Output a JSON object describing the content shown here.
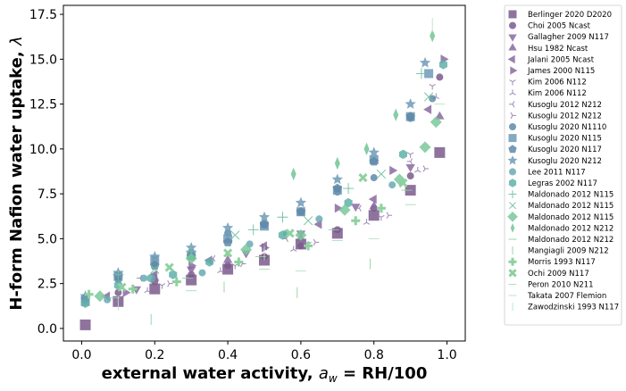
{
  "chart_data": {
    "type": "scatter",
    "title": "",
    "xlabel": "external water activity, a_w = RH/100",
    "xlabel_parts": {
      "main": "external water activity, ",
      "var": "a",
      "sub": "w",
      "rest": " = RH/100"
    },
    "ylabel": "H-form Nafion water uptake, λ",
    "ylabel_parts": {
      "main": "H-form Nafion water uptake, ",
      "var": "λ"
    },
    "xlim": [
      -0.05,
      1.05
    ],
    "ylim": [
      -0.7,
      18.0
    ],
    "xticks": [
      0.0,
      0.2,
      0.4,
      0.6,
      0.8,
      1.0
    ],
    "xtick_labels": [
      "0.0",
      "0.2",
      "0.4",
      "0.6",
      "0.8",
      "1.0"
    ],
    "yticks": [
      0.0,
      2.5,
      5.0,
      7.5,
      10.0,
      12.5,
      15.0,
      17.5
    ],
    "ytick_labels": [
      "0.0",
      "2.5",
      "5.0",
      "7.5",
      "10.0",
      "12.5",
      "15.0",
      "17.5"
    ],
    "grid": false,
    "legend_position": "outside-right",
    "series": [
      {
        "name": "Berlinger 2020 D2020",
        "marker": "square",
        "color": "#7b5a8c",
        "size": 6,
        "x": [
          0.01,
          0.1,
          0.2,
          0.3,
          0.4,
          0.5,
          0.6,
          0.7,
          0.8,
          0.9,
          0.98
        ],
        "y": [
          0.2,
          1.5,
          2.2,
          2.7,
          3.3,
          3.8,
          4.7,
          5.3,
          6.3,
          7.7,
          9.8
        ]
      },
      {
        "name": "Choi 2005 Ncast",
        "marker": "circle",
        "color": "#7b5a8c",
        "size": 4,
        "x": [
          0.1,
          0.2,
          0.3,
          0.4,
          0.5,
          0.6,
          0.7,
          0.8,
          0.9,
          0.98
        ],
        "y": [
          2.0,
          2.6,
          3.0,
          3.5,
          4.0,
          4.6,
          5.5,
          6.7,
          8.5,
          14.0
        ]
      },
      {
        "name": "Gallagher 2009 N117",
        "marker": "triangle-down",
        "color": "#8a6aa0",
        "size": 5,
        "x": [
          0.15,
          0.3,
          0.45,
          0.6,
          0.75,
          0.9
        ],
        "y": [
          2.2,
          3.3,
          4.2,
          5.3,
          6.8,
          9.0
        ]
      },
      {
        "name": "Hsu 1982 Ncast",
        "marker": "triangle-up",
        "color": "#8a6aa0",
        "size": 5,
        "x": [
          0.2,
          0.4,
          0.6,
          0.8,
          0.98
        ],
        "y": [
          2.8,
          3.8,
          5.0,
          6.8,
          11.8
        ]
      },
      {
        "name": "Jalani 2005 Ncast",
        "marker": "triangle-left",
        "color": "#8a6aa0",
        "size": 5,
        "x": [
          0.07,
          0.2,
          0.35,
          0.5,
          0.65,
          0.8,
          0.95
        ],
        "y": [
          1.8,
          3.0,
          3.8,
          4.6,
          5.8,
          7.2,
          12.2
        ]
      },
      {
        "name": "James 2000 N115",
        "marker": "triangle-right",
        "color": "#8a6aa0",
        "size": 5,
        "x": [
          0.12,
          0.3,
          0.5,
          0.7,
          0.85,
          0.99
        ],
        "y": [
          2.0,
          3.5,
          4.5,
          6.7,
          8.8,
          15.0
        ]
      },
      {
        "name": "Kim 2006 N112",
        "marker": "tri-down",
        "color": "#9d88b5",
        "size": 4,
        "x": [
          0.22,
          0.42,
          0.62,
          0.82,
          0.9,
          0.96
        ],
        "y": [
          2.4,
          3.5,
          4.7,
          6.2,
          9.7,
          13.5
        ]
      },
      {
        "name": "Kim 2006 N112",
        "marker": "tri-up",
        "color": "#9d88b5",
        "size": 4,
        "x": [
          0.18,
          0.38,
          0.58,
          0.78,
          0.92,
          0.97
        ],
        "y": [
          2.1,
          3.2,
          4.4,
          5.9,
          8.8,
          12.9
        ]
      },
      {
        "name": "Kusoglu 2012 N212",
        "marker": "tri-left",
        "color": "#9d88b5",
        "size": 4,
        "x": [
          0.16,
          0.36,
          0.56,
          0.76,
          0.9
        ],
        "y": [
          2.8,
          3.9,
          5.0,
          6.7,
          9.3
        ]
      },
      {
        "name": "Kusoglu 2012 N212",
        "marker": "tri-right",
        "color": "#9d88b5",
        "size": 4,
        "x": [
          0.24,
          0.44,
          0.64,
          0.84,
          0.94
        ],
        "y": [
          2.5,
          3.6,
          4.8,
          6.3,
          8.9
        ]
      },
      {
        "name": "Kusoglu 2020 N1110",
        "marker": "circle",
        "color": "#5f8aa8",
        "size": 4,
        "x": [
          0.01,
          0.1,
          0.2,
          0.3,
          0.4,
          0.5,
          0.6,
          0.7,
          0.8,
          0.9,
          0.96
        ],
        "y": [
          1.6,
          2.7,
          3.6,
          4.2,
          5.3,
          5.8,
          6.5,
          7.6,
          8.4,
          11.7,
          12.8
        ]
      },
      {
        "name": "Kusoglu 2020 N115",
        "marker": "square",
        "color": "#6f9ab6",
        "size": 5,
        "x": [
          0.01,
          0.1,
          0.2,
          0.3,
          0.4,
          0.5,
          0.6,
          0.7,
          0.8,
          0.9,
          0.95
        ],
        "y": [
          1.5,
          2.9,
          3.8,
          4.1,
          5.0,
          5.7,
          6.5,
          7.7,
          9.4,
          11.8,
          14.2
        ]
      },
      {
        "name": "Kusoglu 2020 N117",
        "marker": "pentagon",
        "color": "#5f8aa8",
        "size": 5,
        "x": [
          0.01,
          0.1,
          0.2,
          0.3,
          0.4,
          0.5,
          0.6,
          0.7,
          0.8,
          0.9
        ],
        "y": [
          1.7,
          2.9,
          3.5,
          4.0,
          4.8,
          5.8,
          6.5,
          7.8,
          9.3,
          11.8
        ]
      },
      {
        "name": "Kusoglu 2020 N212",
        "marker": "star",
        "color": "#6f9ab6",
        "size": 5,
        "x": [
          0.01,
          0.1,
          0.2,
          0.3,
          0.4,
          0.5,
          0.6,
          0.7,
          0.8,
          0.9,
          0.94
        ],
        "y": [
          1.8,
          3.1,
          4.0,
          4.5,
          5.6,
          6.2,
          7.0,
          8.3,
          9.8,
          12.5,
          14.8
        ]
      },
      {
        "name": "Lee 2011 N117",
        "marker": "circle",
        "color": "#6aaab0",
        "size": 4,
        "x": [
          0.07,
          0.17,
          0.33,
          0.46,
          0.56,
          0.65,
          0.85
        ],
        "y": [
          1.6,
          2.8,
          3.1,
          4.7,
          5.3,
          6.1,
          8.0
        ]
      },
      {
        "name": "Legras 2002 N117",
        "marker": "hexagon",
        "color": "#5fb0a8",
        "size": 5,
        "x": [
          0.01,
          0.1,
          0.19,
          0.25,
          0.35,
          0.55,
          0.73,
          0.88,
          0.99
        ],
        "y": [
          1.4,
          2.4,
          2.8,
          3.0,
          3.7,
          5.2,
          7.0,
          9.7,
          14.7
        ]
      },
      {
        "name": "Maldonado 2012 N115",
        "marker": "plus-thin",
        "color": "#6fc0a0",
        "size": 6,
        "x": [
          0.1,
          0.3,
          0.47,
          0.55,
          0.73,
          0.93
        ],
        "y": [
          3.0,
          4.3,
          5.5,
          6.2,
          7.8,
          14.2
        ]
      },
      {
        "name": "Maldonado 2012 N115",
        "marker": "x-thin",
        "color": "#6fc0a0",
        "size": 6,
        "x": [
          0.2,
          0.42,
          0.62,
          0.82,
          0.95
        ],
        "y": [
          3.3,
          5.2,
          6.0,
          8.6,
          12.9
        ]
      },
      {
        "name": "Maldonado 2012 N115",
        "marker": "diamond",
        "color": "#79c89a",
        "size": 5,
        "x": [
          0.05,
          0.3,
          0.45,
          0.6,
          0.72,
          0.87,
          0.94,
          0.97
        ],
        "y": [
          1.8,
          3.9,
          4.4,
          5.2,
          6.6,
          8.3,
          10.1,
          11.5
        ]
      },
      {
        "name": "Maldonado 2012 N212",
        "marker": "thin-diamond",
        "color": "#79c89a",
        "size": 6,
        "x": [
          0.58,
          0.7,
          0.78,
          0.86,
          0.96
        ],
        "y": [
          8.6,
          9.2,
          10.0,
          11.9,
          16.3
        ]
      },
      {
        "name": "Maldonado 2012 N212",
        "marker": "hline",
        "color": "#8ed1a0",
        "size": 6,
        "x": [
          0.09,
          0.29,
          0.49,
          0.69,
          0.89
        ],
        "y": [
          1.7,
          2.8,
          4.0,
          5.5,
          7.7
        ]
      },
      {
        "name": "Mangiagli 2009 N212",
        "marker": "vline",
        "color": "#8ed1a0",
        "size": 6,
        "x": [
          0.19,
          0.39,
          0.59,
          0.79
        ],
        "y": [
          0.5,
          2.3,
          2.0,
          3.6
        ]
      },
      {
        "name": "Morris  1993 N117",
        "marker": "plus-thick",
        "color": "#8ed1a0",
        "size": 5,
        "x": [
          0.02,
          0.14,
          0.26,
          0.43,
          0.62,
          0.75,
          0.82
        ],
        "y": [
          1.9,
          2.2,
          2.6,
          3.7,
          4.6,
          6.0,
          6.7
        ]
      },
      {
        "name": "Ochi 2009 N117",
        "marker": "x-thick",
        "color": "#8ed1a0",
        "size": 5,
        "x": [
          0.11,
          0.24,
          0.4,
          0.57,
          0.77,
          0.88
        ],
        "y": [
          2.3,
          3.4,
          4.2,
          5.3,
          8.4,
          8.1
        ]
      },
      {
        "name": "Peron 2010 N211",
        "marker": "dash-light",
        "color": "#a8dcb5",
        "size": 6,
        "x": [
          0.3,
          0.5,
          0.7,
          0.9
        ],
        "y": [
          2.1,
          3.3,
          4.9,
          6.9
        ]
      },
      {
        "name": "Takata 2007 Flemion",
        "marker": "dash-light",
        "color": "#b8e3c2",
        "size": 6,
        "x": [
          0.6,
          0.8,
          0.98
        ],
        "y": [
          3.2,
          5.0,
          12.5
        ]
      },
      {
        "name": "Zawodzinski 1993 N117",
        "marker": "vline",
        "color": "#b8e3c2",
        "size": 8,
        "x": [
          0.1,
          0.5,
          0.96
        ],
        "y": [
          1.4,
          4.2,
          16.9
        ]
      }
    ]
  }
}
